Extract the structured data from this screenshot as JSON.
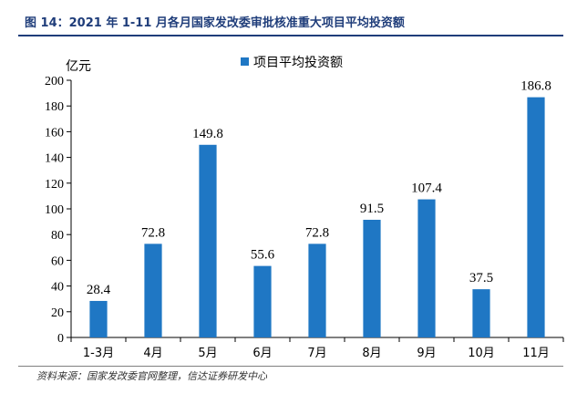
{
  "figure": {
    "title": "图 14：2021 年 1-11 月各月国家发改委审批核准重大项目平均投资额",
    "source": "资料来源：国家发改委官网整理，信达证券研发中心"
  },
  "chart_data": {
    "type": "bar",
    "title": "",
    "xlabel": "",
    "ylabel": "亿元",
    "categories": [
      "1-3月",
      "4月",
      "5月",
      "6月",
      "7月",
      "8月",
      "9月",
      "10月",
      "11月"
    ],
    "series": [
      {
        "name": "项目平均投资额",
        "values": [
          28.4,
          72.8,
          149.8,
          55.6,
          72.8,
          91.5,
          107.4,
          37.5,
          186.8
        ]
      }
    ],
    "ylim": [
      0,
      200
    ],
    "yticks": [
      0,
      20,
      40,
      60,
      80,
      100,
      120,
      140,
      160,
      180,
      200
    ],
    "grid": false,
    "legend": "top-center",
    "bar_color": "#1f77c4"
  }
}
